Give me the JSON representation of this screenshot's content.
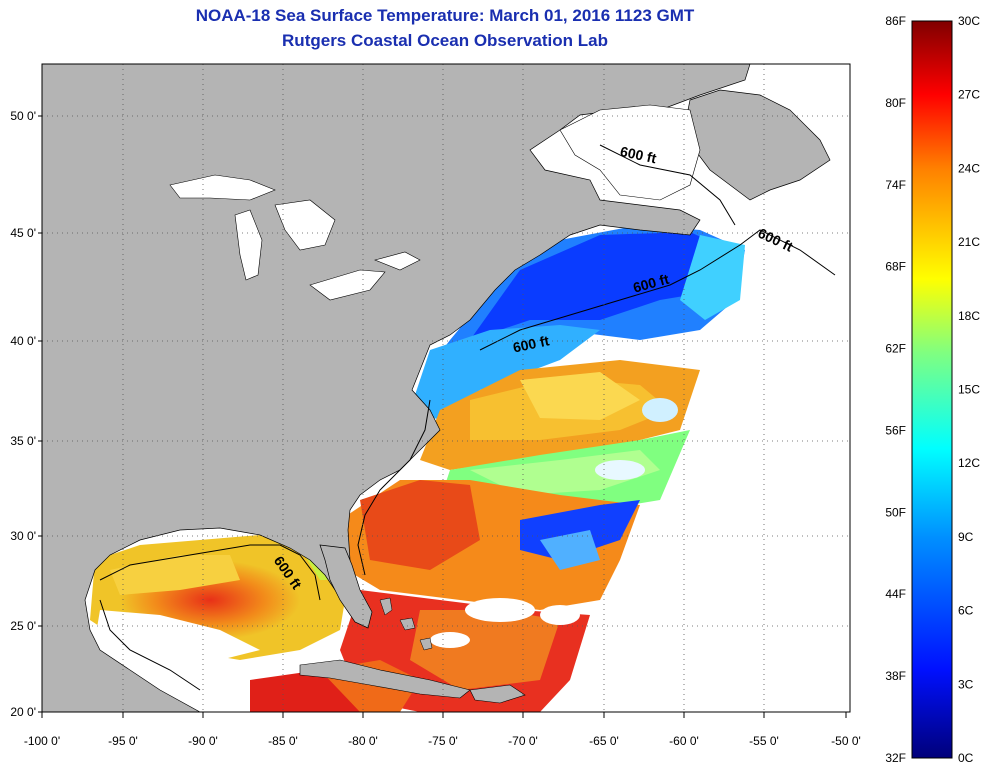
{
  "header": {
    "title": "NOAA-18 Sea Surface Temperature:  March 01, 2016 1123 GMT",
    "subtitle": "Rutgers Coastal Ocean Observation Lab"
  },
  "map": {
    "lon_ticks": [
      "-100 0'",
      "-95 0'",
      "-90 0'",
      "-85 0'",
      "-80 0'",
      "-75 0'",
      "-70 0'",
      "-65 0'",
      "-60 0'",
      "-55 0'",
      "-50 0'"
    ],
    "lat_ticks": [
      "50 0'",
      "45 0'",
      "40 0'",
      "35 0'",
      "30 0'",
      "25 0'",
      "20 0'"
    ],
    "contour_labels": [
      "600 ft",
      "600 ft",
      "600 ft",
      "600 ft",
      "600 ft"
    ],
    "colors": {
      "land": "#b4b4b4",
      "no_data": "#ffffff",
      "grid": "#555555"
    }
  },
  "colorbar": {
    "left_labels": [
      "86F",
      "80F",
      "74F",
      "68F",
      "62F",
      "56F",
      "50F",
      "44F",
      "38F",
      "32F"
    ],
    "right_labels": [
      "30C",
      "27C",
      "24C",
      "21C",
      "18C",
      "15C",
      "12C",
      "9C",
      "6C",
      "3C",
      "0C"
    ]
  }
}
